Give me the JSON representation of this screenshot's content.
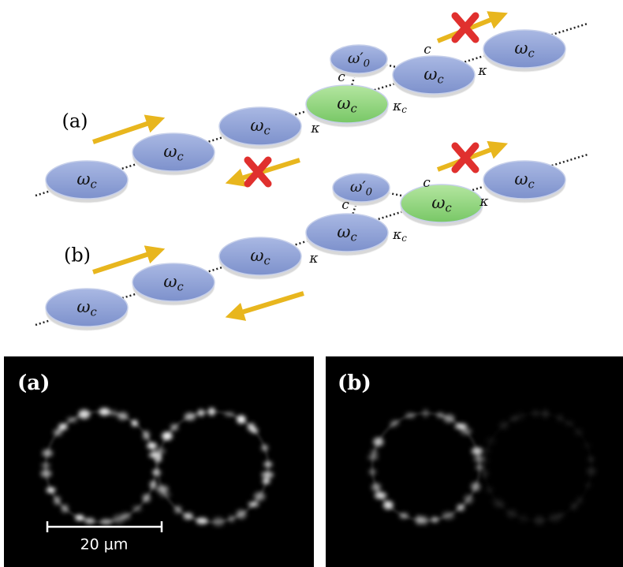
{
  "diagram": {
    "panel_a": {
      "label": "(a)",
      "nodes": [
        {
          "symbol": "ω",
          "subscript": "c"
        },
        {
          "symbol": "ω",
          "subscript": "c"
        },
        {
          "symbol": "ω",
          "subscript": "c"
        },
        {
          "symbol": "ω",
          "subscript": "c"
        },
        {
          "symbol": "ω′",
          "subscript": "0"
        },
        {
          "symbol": "ω",
          "subscript": "c"
        },
        {
          "symbol": "ω",
          "subscript": "c"
        }
      ],
      "couplings": [
        {
          "symbol": "κ"
        },
        {
          "symbol": "κ",
          "subscript": "c"
        },
        {
          "symbol": "c"
        },
        {
          "symbol": "c"
        },
        {
          "symbol": "κ"
        }
      ]
    },
    "panel_b": {
      "label": "(b)",
      "nodes": [
        {
          "symbol": "ω",
          "subscript": "c"
        },
        {
          "symbol": "ω",
          "subscript": "c"
        },
        {
          "symbol": "ω",
          "subscript": "c"
        },
        {
          "symbol": "ω",
          "subscript": "c"
        },
        {
          "symbol": "ω′",
          "subscript": "0"
        },
        {
          "symbol": "ω",
          "subscript": "c"
        },
        {
          "symbol": "ω",
          "subscript": "c"
        }
      ],
      "couplings": [
        {
          "symbol": "κ"
        },
        {
          "symbol": "κ",
          "subscript": "c"
        },
        {
          "symbol": "c"
        },
        {
          "symbol": "c"
        },
        {
          "symbol": "κ"
        }
      ]
    }
  },
  "images": {
    "panel_a": {
      "label": "(a)",
      "scale_bar": "20 μm"
    },
    "panel_b": {
      "label": "(b)"
    }
  }
}
